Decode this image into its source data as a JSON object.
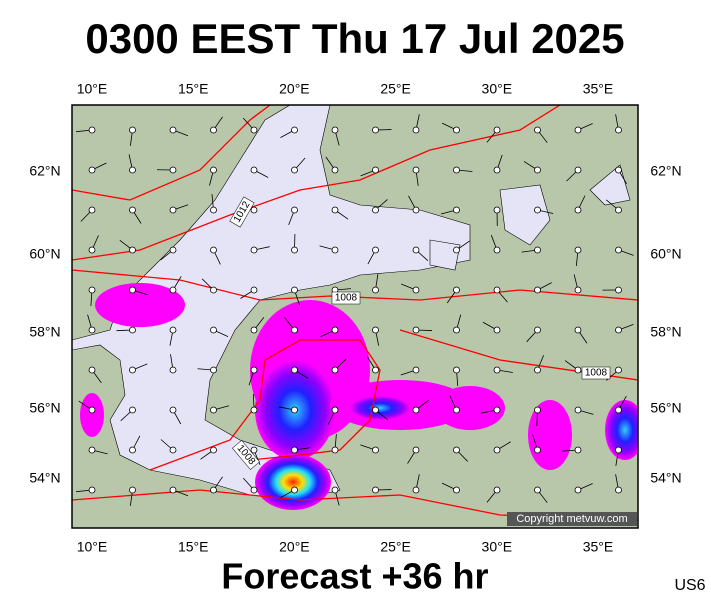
{
  "header": {
    "title": "0300 EEST Thu 17 Jul 2025"
  },
  "lon_labels": [
    "10°E",
    "15°E",
    "20°E",
    "25°E",
    "30°E",
    "35°E"
  ],
  "lat_labels": [
    "62°N",
    "60°N",
    "58°N",
    "56°N",
    "54°N"
  ],
  "isobar_labels": [
    "1012",
    "1008",
    "1008",
    "1008"
  ],
  "copyright": "Copyright metvuw.com",
  "footer": {
    "forecast": "Forecast +36 hr",
    "code": "US6"
  }
}
